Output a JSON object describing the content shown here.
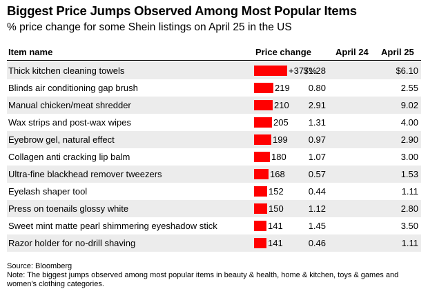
{
  "title": "Biggest Price Jumps Observed Among Most Popular Items",
  "subtitle": "% price change for some Shein listings on April 25 in the US",
  "columns": {
    "item": "Item name",
    "change": "Price change",
    "april24": "April 24",
    "april25": "April 25"
  },
  "chart_data": {
    "type": "table",
    "bar_color": "#ff0000",
    "columns": [
      "Item name",
      "Price change",
      "April 24",
      "April 25"
    ],
    "rows": [
      {
        "name": "Thick kitchen cleaning towels",
        "change": 377,
        "change_label": "+377%",
        "april24": "$1.28",
        "april25": "$6.10"
      },
      {
        "name": "Blinds air conditioning gap brush",
        "change": 219,
        "change_label": "219",
        "april24": "0.80",
        "april25": "2.55"
      },
      {
        "name": "Manual chicken/meat shredder",
        "change": 210,
        "change_label": "210",
        "april24": "2.91",
        "april25": "9.02"
      },
      {
        "name": "Wax strips and post-wax wipes",
        "change": 205,
        "change_label": "205",
        "april24": "1.31",
        "april25": "4.00"
      },
      {
        "name": "Eyebrow gel, natural effect",
        "change": 199,
        "change_label": "199",
        "april24": "0.97",
        "april25": "2.90"
      },
      {
        "name": "Collagen anti cracking lip balm",
        "change": 180,
        "change_label": "180",
        "april24": "1.07",
        "april25": "3.00"
      },
      {
        "name": "Ultra-fine blackhead remover tweezers",
        "change": 168,
        "change_label": "168",
        "april24": "0.57",
        "april25": "1.53"
      },
      {
        "name": "Eyelash shaper tool",
        "change": 152,
        "change_label": "152",
        "april24": "0.44",
        "april25": "1.11"
      },
      {
        "name": "Press on toenails glossy white",
        "change": 150,
        "change_label": "150",
        "april24": "1.12",
        "april25": "2.80"
      },
      {
        "name": "Sweet mint matte pearl shimmering eyeshadow stick",
        "change": 141,
        "change_label": "141",
        "april24": "1.45",
        "april25": "3.50"
      },
      {
        "name": "Razor holder for no-drill shaving",
        "change": 141,
        "change_label": "141",
        "april24": "0.46",
        "april25": "1.11"
      }
    ]
  },
  "source": "Source: Bloomberg",
  "note": "Note: The biggest jumps observed among most popular items in beauty & health, home & kitchen, toys & games and women's clothing categories."
}
